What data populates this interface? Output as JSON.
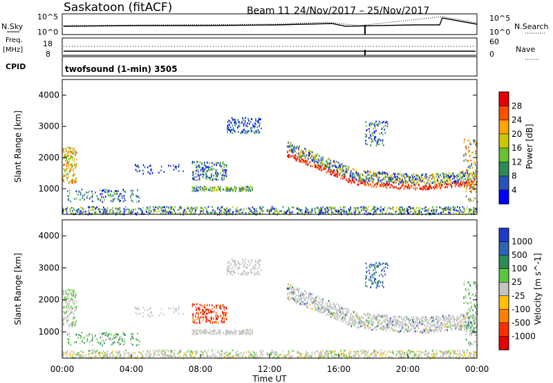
{
  "header": {
    "title": "Saskatoon (fitACF)",
    "beam": "Beam 11",
    "dates": "24/Nov/2017 – 25/Nov/2017"
  },
  "top_panel": {
    "left_label": "N.Sky",
    "left_ticks": [
      "10^5",
      "10^0"
    ],
    "right_label": "N.Search",
    "right_ticks": [
      "10^5",
      "10^0"
    ]
  },
  "freq_panel": {
    "left_label_1": "Freq.",
    "left_label_2": "[MHz]",
    "left_ticks": [
      "18",
      "8"
    ],
    "right_label": "Nave",
    "right_ticks": [
      "60",
      "0"
    ],
    "cpid_label": "CPID",
    "cpid_text": "twofsound (1-min) 3505"
  },
  "chart_data": [
    {
      "type": "heatmap",
      "title": "Power",
      "ylabel": "Slant Range [km]",
      "xlabel": "Time UT",
      "ylim": [
        180,
        4500
      ],
      "yticks": [
        "1000",
        "2000",
        "3000",
        "4000"
      ],
      "xticks": [
        "00:00",
        "04:00",
        "08:00",
        "12:00",
        "16:00",
        "20:00",
        "00:00"
      ],
      "colorbar_label": "Power [dB]",
      "colorbar_ticks": [
        "4",
        "8",
        "12",
        "16",
        "20",
        "24",
        "28"
      ],
      "colorbar_colors": [
        "#0000ff",
        "#2855b5",
        "#2e8b57",
        "#66c22e",
        "#c8c800",
        "#ffa500",
        "#ff5000",
        "#e60000"
      ]
    },
    {
      "type": "heatmap",
      "title": "Velocity",
      "ylabel": "Slant Range [km]",
      "xlabel": "Time UT",
      "ylim": [
        180,
        4500
      ],
      "yticks": [
        "1000",
        "2000",
        "3000",
        "4000"
      ],
      "xticks": [
        "00:00",
        "04:00",
        "08:00",
        "12:00",
        "16:00",
        "20:00",
        "00:00"
      ],
      "colorbar_label": "Velocity [m s^-1]",
      "colorbar_ticks": [
        "1000",
        "500",
        "100",
        "25",
        "-25",
        "-100",
        "-500",
        "-1000"
      ],
      "colorbar_colors": [
        "#1e3cc8",
        "#2f64b4",
        "#2e8b57",
        "#5ac83c",
        "#c4c4c0",
        "#ffc000",
        "#ff8000",
        "#ff3000",
        "#e60000"
      ]
    }
  ]
}
